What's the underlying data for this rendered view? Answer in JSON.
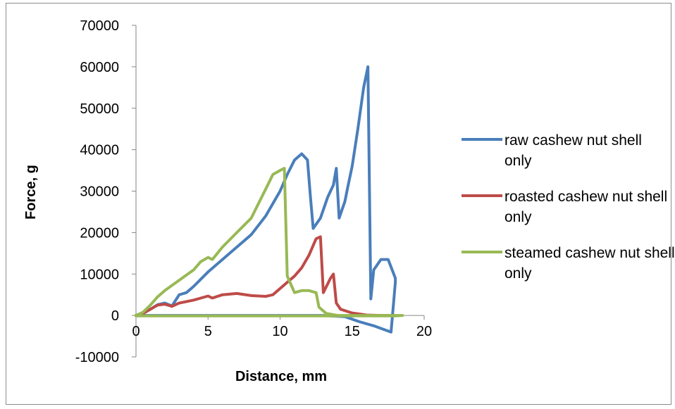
{
  "chart_data": {
    "type": "line",
    "title": "",
    "xlabel": "Distance, mm",
    "ylabel": "Force, g",
    "xlim": [
      0,
      20
    ],
    "ylim": [
      -10000,
      70000
    ],
    "x_ticks": [
      0,
      5,
      10,
      15,
      20
    ],
    "y_ticks": [
      -10000,
      0,
      10000,
      20000,
      30000,
      40000,
      50000,
      60000,
      70000
    ],
    "grid": false,
    "legend_position": "right",
    "series": [
      {
        "name": "raw cashew nut shell only",
        "color": "#4a7ebb",
        "points": [
          [
            0,
            0
          ],
          [
            0.5,
            500
          ],
          [
            1,
            1500
          ],
          [
            1.5,
            2600
          ],
          [
            2,
            3000
          ],
          [
            2.5,
            2300
          ],
          [
            3,
            5000
          ],
          [
            3.5,
            5500
          ],
          [
            4,
            7000
          ],
          [
            5,
            10500
          ],
          [
            6,
            13500
          ],
          [
            7,
            16500
          ],
          [
            8,
            19500
          ],
          [
            9,
            24000
          ],
          [
            10,
            30000
          ],
          [
            10.5,
            34000
          ],
          [
            11,
            37500
          ],
          [
            11.5,
            39000
          ],
          [
            11.9,
            37500
          ],
          [
            12.1,
            29000
          ],
          [
            12.3,
            21000
          ],
          [
            12.8,
            23500
          ],
          [
            13.3,
            28500
          ],
          [
            13.7,
            31500
          ],
          [
            13.9,
            35500
          ],
          [
            14.1,
            23500
          ],
          [
            14.5,
            27500
          ],
          [
            14.7,
            31000
          ],
          [
            15,
            36000
          ],
          [
            15.4,
            45000
          ],
          [
            15.8,
            55000
          ],
          [
            16.1,
            60000
          ],
          [
            16.3,
            4000
          ],
          [
            16.5,
            11000
          ],
          [
            17,
            13500
          ],
          [
            17.5,
            13500
          ],
          [
            18,
            9000
          ],
          [
            18,
            8000
          ],
          [
            17.7,
            -4000
          ],
          [
            17.3,
            -3500
          ],
          [
            16.5,
            -2500
          ],
          [
            15.5,
            -1500
          ],
          [
            14.5,
            -300
          ],
          [
            13,
            0
          ],
          [
            10,
            0
          ],
          [
            5,
            0
          ],
          [
            0,
            0
          ]
        ]
      },
      {
        "name": "roasted cashew nut shell only",
        "color": "#be4b48",
        "points": [
          [
            0,
            0
          ],
          [
            0.5,
            500
          ],
          [
            1,
            1500
          ],
          [
            1.5,
            2500
          ],
          [
            2,
            2700
          ],
          [
            2.5,
            2200
          ],
          [
            3,
            3000
          ],
          [
            4,
            3700
          ],
          [
            5,
            4700
          ],
          [
            5.3,
            4200
          ],
          [
            6,
            5000
          ],
          [
            7,
            5300
          ],
          [
            8,
            4800
          ],
          [
            9,
            4600
          ],
          [
            9.5,
            5000
          ],
          [
            10,
            6500
          ],
          [
            10.5,
            8000
          ],
          [
            11,
            9500
          ],
          [
            11.5,
            11500
          ],
          [
            12,
            14500
          ],
          [
            12.5,
            18500
          ],
          [
            12.8,
            19000
          ],
          [
            13,
            5500
          ],
          [
            13.5,
            9000
          ],
          [
            13.7,
            10000
          ],
          [
            13.9,
            3000
          ],
          [
            14.2,
            1500
          ],
          [
            15,
            600
          ],
          [
            16,
            100
          ],
          [
            17,
            0
          ],
          [
            18,
            0
          ]
        ]
      },
      {
        "name": "steamed cashew nut shell only",
        "color": "#98b954",
        "points": [
          [
            0,
            0
          ],
          [
            0.5,
            800
          ],
          [
            1,
            2500
          ],
          [
            1.5,
            4500
          ],
          [
            2,
            6000
          ],
          [
            3,
            8500
          ],
          [
            4,
            11000
          ],
          [
            4.5,
            13000
          ],
          [
            5,
            14000
          ],
          [
            5.3,
            13500
          ],
          [
            6,
            16500
          ],
          [
            7,
            20000
          ],
          [
            8,
            23500
          ],
          [
            8.5,
            27000
          ],
          [
            9,
            30500
          ],
          [
            9.5,
            34000
          ],
          [
            10,
            35000
          ],
          [
            10.3,
            35500
          ],
          [
            10.5,
            9500
          ],
          [
            11,
            5500
          ],
          [
            11.5,
            6000
          ],
          [
            12,
            6000
          ],
          [
            12.5,
            5500
          ],
          [
            12.7,
            2000
          ],
          [
            13.2,
            500
          ],
          [
            14,
            0
          ],
          [
            15,
            0
          ],
          [
            16,
            0
          ],
          [
            17,
            0
          ],
          [
            18.5,
            0
          ],
          [
            18,
            -100
          ],
          [
            10,
            -100
          ],
          [
            5,
            -100
          ],
          [
            0,
            -100
          ]
        ]
      }
    ]
  }
}
